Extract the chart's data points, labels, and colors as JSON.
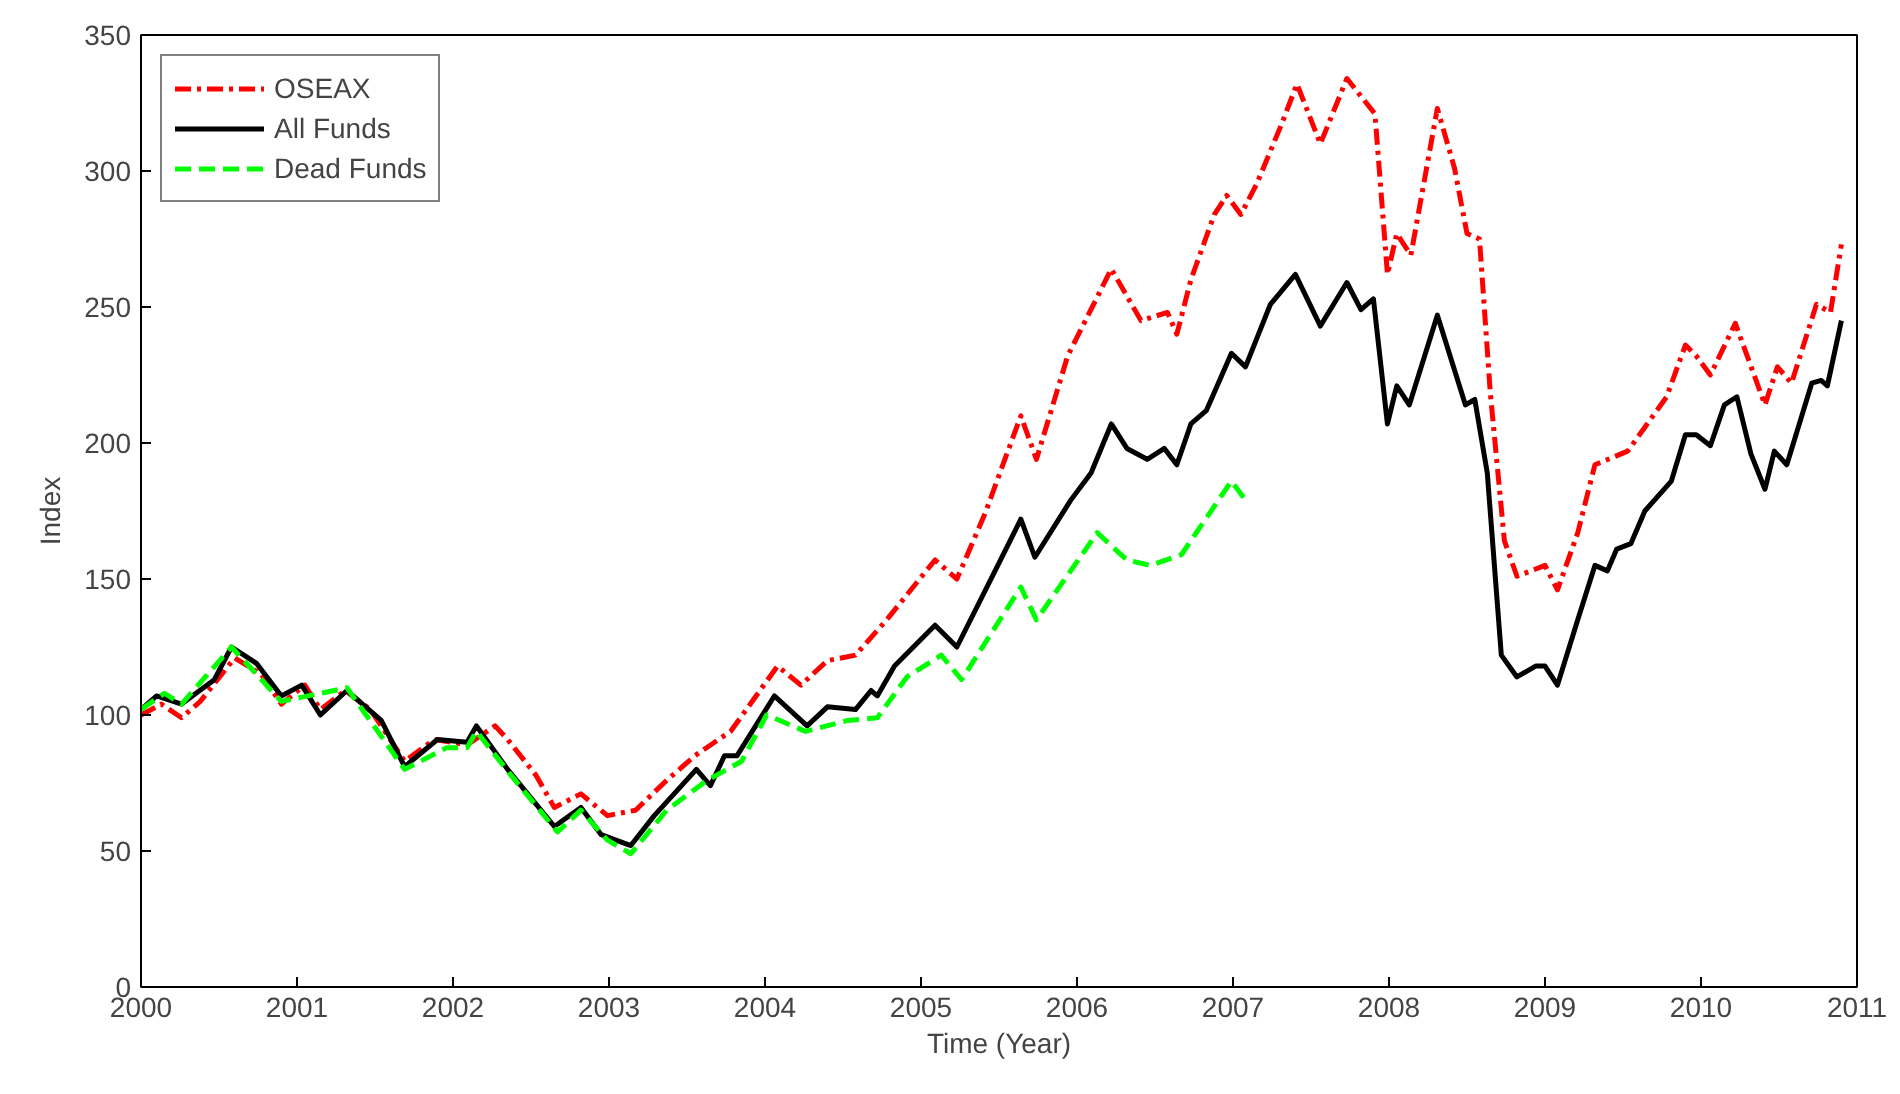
{
  "chart_data": {
    "type": "line",
    "xlabel": "Time (Year)",
    "ylabel": "Index",
    "xlim": [
      2000,
      2011
    ],
    "xticks": [
      2000,
      2001,
      2002,
      2003,
      2004,
      2005,
      2006,
      2007,
      2008,
      2009,
      2010,
      2011
    ],
    "ylim": [
      0,
      350
    ],
    "yticks": [
      0,
      50,
      100,
      150,
      200,
      250,
      300,
      350
    ],
    "grid": false,
    "legend": "top left",
    "series": [
      {
        "name": "OSEAX",
        "color": "#ff0000",
        "line_style": "dashdot",
        "x": [
          2000.0,
          2000.13,
          2000.26,
          2000.38,
          2000.49,
          2000.6,
          2000.77,
          2000.9,
          2001.05,
          2001.15,
          2001.31,
          2001.47,
          2001.69,
          2001.88,
          2002.09,
          2002.27,
          2002.35,
          2002.53,
          2002.65,
          2002.82,
          2002.99,
          2003.17,
          2003.37,
          2003.55,
          2003.78,
          2004.08,
          2004.23,
          2004.4,
          2004.58,
          2004.78,
          2005.09,
          2005.23,
          2005.41,
          2005.64,
          2005.74,
          2005.94,
          2006.22,
          2006.41,
          2006.58,
          2006.64,
          2006.73,
          2006.88,
          2006.96,
          2007.05,
          2007.15,
          2007.31,
          2007.41,
          2007.56,
          2007.73,
          2007.91,
          2007.99,
          2008.05,
          2008.14,
          2008.31,
          2008.42,
          2008.5,
          2008.58,
          2008.65,
          2008.74,
          2008.82,
          2009.0,
          2009.08,
          2009.21,
          2009.32,
          2009.53,
          2009.78,
          2009.9,
          2009.97,
          2010.06,
          2010.22,
          2010.41,
          2010.49,
          2010.58,
          2010.74,
          2010.83,
          2010.9
        ],
        "values": [
          100,
          104,
          99,
          105,
          113,
          121,
          115,
          104,
          111,
          102,
          109,
          102,
          83,
          91,
          89,
          96,
          91,
          78,
          66,
          71,
          63,
          65,
          76,
          85,
          94,
          118,
          111,
          120,
          122,
          135,
          157,
          150,
          174,
          210,
          194,
          232,
          264,
          245,
          248,
          240,
          260,
          284,
          291,
          284,
          295,
          317,
          332,
          310,
          334,
          321,
          262,
          277,
          269,
          323,
          301,
          277,
          275,
          218,
          164,
          151,
          155,
          146,
          167,
          192,
          197,
          217,
          236,
          232,
          225,
          244,
          214,
          228,
          222,
          251,
          248,
          273
        ]
      },
      {
        "name": "All Funds",
        "color": "#000000",
        "line_style": "solid",
        "x": [
          2000.0,
          2000.1,
          2000.26,
          2000.47,
          2000.58,
          2000.74,
          2000.9,
          2001.03,
          2001.15,
          2001.32,
          2001.54,
          2001.69,
          2001.9,
          2002.09,
          2002.15,
          2002.35,
          2002.65,
          2002.82,
          2002.95,
          2003.14,
          2003.29,
          2003.56,
          2003.65,
          2003.74,
          2003.82,
          2004.06,
          2004.27,
          2004.4,
          2004.58,
          2004.68,
          2004.72,
          2004.83,
          2005.09,
          2005.23,
          2005.51,
          2005.64,
          2005.73,
          2005.96,
          2006.09,
          2006.22,
          2006.32,
          2006.45,
          2006.56,
          2006.64,
          2006.73,
          2006.83,
          2006.99,
          2007.08,
          2007.24,
          2007.4,
          2007.56,
          2007.73,
          2007.82,
          2007.9,
          2007.99,
          2008.05,
          2008.13,
          2008.31,
          2008.49,
          2008.55,
          2008.63,
          2008.72,
          2008.82,
          2008.94,
          2009.0,
          2009.08,
          2009.21,
          2009.32,
          2009.4,
          2009.46,
          2009.55,
          2009.64,
          2009.81,
          2009.9,
          2009.97,
          2010.06,
          2010.15,
          2010.23,
          2010.32,
          2010.41,
          2010.47,
          2010.55,
          2010.71,
          2010.77,
          2010.81,
          2010.9
        ],
        "values": [
          102,
          107,
          104,
          113,
          125,
          119,
          107,
          111,
          100,
          109,
          98,
          81,
          91,
          90,
          96,
          80,
          59,
          66,
          56,
          52,
          63,
          80,
          74,
          85,
          85,
          107,
          96,
          103,
          102,
          109,
          107,
          118,
          133,
          125,
          157,
          172,
          158,
          179,
          189,
          207,
          198,
          194,
          198,
          192,
          207,
          212,
          233,
          228,
          251,
          262,
          243,
          259,
          249,
          253,
          207,
          221,
          214,
          247,
          214,
          216,
          189,
          122,
          114,
          118,
          118,
          111,
          135,
          155,
          153,
          161,
          163,
          175,
          186,
          203,
          203,
          199,
          214,
          217,
          196,
          183,
          197,
          192,
          222,
          223,
          221,
          245
        ]
      },
      {
        "name": "Dead Funds",
        "color": "#00ff00",
        "line_style": "dashed",
        "x": [
          2000.0,
          2000.15,
          2000.26,
          2000.58,
          2000.9,
          2001.32,
          2001.69,
          2001.96,
          2002.09,
          2002.15,
          2002.37,
          2002.67,
          2002.82,
          2002.99,
          2003.14,
          2003.37,
          2003.63,
          2003.85,
          2004.01,
          2004.26,
          2004.53,
          2004.72,
          2004.91,
          2005.13,
          2005.26,
          2005.64,
          2005.74,
          2006.13,
          2006.32,
          2006.47,
          2006.67,
          2006.99,
          2007.08
        ],
        "values": [
          102,
          108,
          104,
          125,
          105,
          110,
          80,
          88,
          88,
          94,
          78,
          57,
          65,
          54,
          49,
          65,
          76,
          83,
          100,
          94,
          98,
          99,
          114,
          122,
          113,
          147,
          135,
          167,
          157,
          155,
          159,
          186,
          179
        ]
      }
    ]
  }
}
